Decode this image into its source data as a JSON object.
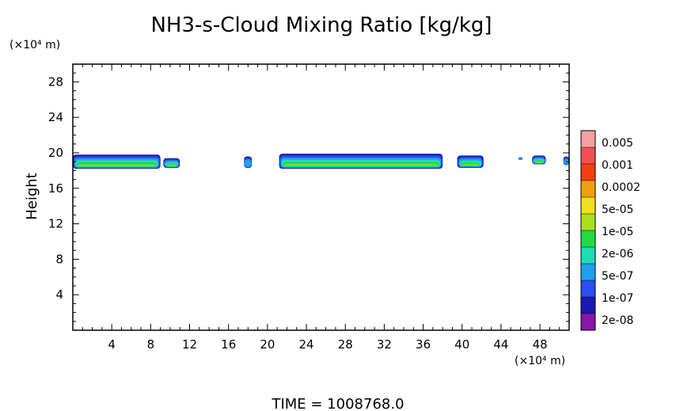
{
  "chart_data": {
    "type": "heatmap",
    "title": "NH3-s-Cloud Mixing Ratio [kg/kg]",
    "ylabel": "Height",
    "xlabel": "",
    "x_unit": "(×10⁴ m)",
    "y_unit": "(×10⁴ m)",
    "xlim": [
      0,
      51
    ],
    "ylim": [
      0,
      30
    ],
    "x_ticks": [
      4,
      8,
      12,
      16,
      20,
      24,
      28,
      32,
      36,
      40,
      44,
      48
    ],
    "y_ticks": [
      4,
      8,
      12,
      16,
      20,
      24,
      28
    ],
    "x_tick_labels": [
      "4",
      "8",
      "12",
      "16",
      "20",
      "24",
      "28",
      "32",
      "36",
      "40",
      "44",
      "48"
    ],
    "y_tick_labels": [
      "4",
      "8",
      "12",
      "16",
      "20",
      "24",
      "28"
    ],
    "colorbar": {
      "levels": [
        "2e-08",
        "1e-07",
        "5e-07",
        "2e-06",
        "1e-05",
        "5e-05",
        "0.0002",
        "0.001",
        "0.005"
      ],
      "colors": [
        "#8a16a8",
        "#1a1ab0",
        "#2a4ef0",
        "#1ea0f0",
        "#20dcb4",
        "#22dc44",
        "#a8e020",
        "#f0e020",
        "#f0a010",
        "#f04010",
        "#f05050",
        "#f4a0a0"
      ]
    },
    "cloud_regions": [
      {
        "x": [
          0.0,
          9.0
        ],
        "y": [
          18.2,
          19.8
        ]
      },
      {
        "x": [
          9.3,
          11.0
        ],
        "y": [
          18.3,
          19.4
        ]
      },
      {
        "x": [
          17.6,
          18.4
        ],
        "y": [
          18.3,
          19.6
        ]
      },
      {
        "x": [
          21.2,
          38.0
        ],
        "y": [
          18.2,
          19.9
        ]
      },
      {
        "x": [
          39.5,
          42.2
        ],
        "y": [
          18.3,
          19.7
        ]
      },
      {
        "x": [
          45.8,
          46.2
        ],
        "y": [
          19.2,
          19.5
        ]
      },
      {
        "x": [
          47.2,
          48.6
        ],
        "y": [
          18.7,
          19.7
        ]
      },
      {
        "x": [
          50.4,
          51.0
        ],
        "y": [
          18.6,
          19.6
        ]
      }
    ]
  },
  "footer": {
    "time_text": "TIME  =  1008768.0"
  }
}
